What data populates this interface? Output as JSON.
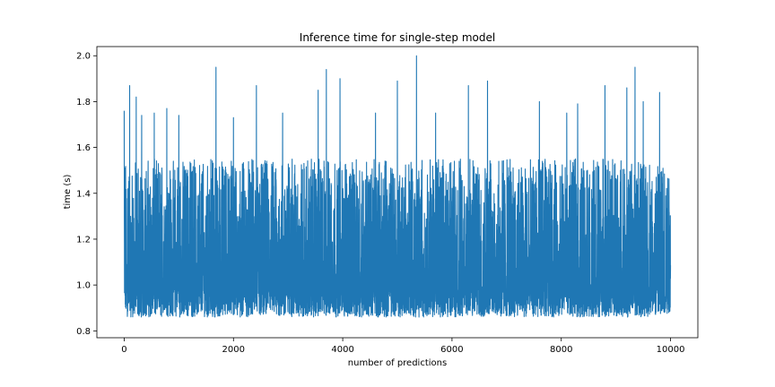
{
  "chart_data": {
    "type": "line",
    "title": "Inference time for single-step model",
    "xlabel": "number of predictions",
    "ylabel": "time (s)",
    "xlim": [
      -500,
      10500
    ],
    "ylim": [
      0.77,
      2.04
    ],
    "xticks": [
      0,
      2000,
      4000,
      6000,
      8000,
      10000
    ],
    "xtick_labels": [
      "0",
      "2000",
      "4000",
      "6000",
      "8000",
      "10000"
    ],
    "yticks": [
      0.8,
      1.0,
      1.2,
      1.4,
      1.6,
      1.8,
      2.0
    ],
    "ytick_labels": [
      "0.8",
      "1.0",
      "1.2",
      "1.4",
      "1.6",
      "1.8",
      "2.0"
    ],
    "grid": false,
    "legend": "none",
    "series": [
      {
        "color": "#1f77b4",
        "n_points": 10000,
        "x_range": [
          0,
          10000
        ],
        "baseline_min_approx": 0.86,
        "typical_upper_band_approx": 1.55,
        "peaks": [
          {
            "x": 0,
            "y": 1.76
          },
          {
            "x": 100,
            "y": 1.87
          },
          {
            "x": 220,
            "y": 1.82
          },
          {
            "x": 320,
            "y": 1.74
          },
          {
            "x": 550,
            "y": 1.75
          },
          {
            "x": 780,
            "y": 1.77
          },
          {
            "x": 1000,
            "y": 1.74
          },
          {
            "x": 1680,
            "y": 1.95
          },
          {
            "x": 2000,
            "y": 1.73
          },
          {
            "x": 2420,
            "y": 1.87
          },
          {
            "x": 2900,
            "y": 1.75
          },
          {
            "x": 3550,
            "y": 1.85
          },
          {
            "x": 3700,
            "y": 1.94
          },
          {
            "x": 3950,
            "y": 1.9
          },
          {
            "x": 4600,
            "y": 1.75
          },
          {
            "x": 5000,
            "y": 1.89
          },
          {
            "x": 5350,
            "y": 2.0
          },
          {
            "x": 5700,
            "y": 1.75
          },
          {
            "x": 6300,
            "y": 1.87
          },
          {
            "x": 6650,
            "y": 1.89
          },
          {
            "x": 7600,
            "y": 1.8
          },
          {
            "x": 8100,
            "y": 1.75
          },
          {
            "x": 8300,
            "y": 1.79
          },
          {
            "x": 8800,
            "y": 1.87
          },
          {
            "x": 9200,
            "y": 1.86
          },
          {
            "x": 9350,
            "y": 1.95
          },
          {
            "x": 9500,
            "y": 1.8
          },
          {
            "x": 9800,
            "y": 1.84
          }
        ]
      }
    ]
  }
}
